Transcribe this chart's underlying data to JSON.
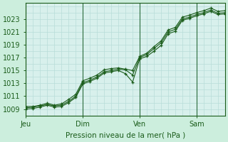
{
  "bg_color": "#cceedd",
  "plot_bg_color": "#d8f0ec",
  "grid_color": "#b8ddd8",
  "line_color": "#1a5c1a",
  "xlabel": "Pression niveau de la mer( hPa )",
  "xtick_labels": [
    "Jeu",
    "Dim",
    "Ven",
    "Sam"
  ],
  "xtick_positions": [
    0,
    48,
    96,
    144
  ],
  "ytick_values": [
    1009,
    1011,
    1013,
    1015,
    1017,
    1019,
    1021,
    1023
  ],
  "ylim": [
    1008.0,
    1025.5
  ],
  "xlim": [
    0,
    168
  ],
  "s1_x": [
    0,
    6,
    12,
    18,
    24,
    30,
    36,
    42,
    48,
    54,
    60,
    66,
    72,
    78,
    84,
    90,
    96,
    102,
    108,
    114,
    120,
    126,
    132,
    138,
    144,
    150,
    156,
    162,
    168
  ],
  "s1_y": [
    1009.2,
    1009.3,
    1009.5,
    1009.7,
    1009.5,
    1009.6,
    1010.2,
    1011.0,
    1013.1,
    1013.5,
    1014.0,
    1014.8,
    1015.0,
    1015.2,
    1015.1,
    1014.3,
    1017.0,
    1017.5,
    1018.4,
    1019.3,
    1021.0,
    1021.4,
    1023.0,
    1023.3,
    1023.7,
    1024.0,
    1024.4,
    1023.9,
    1024.0
  ],
  "s2_x": [
    0,
    6,
    12,
    18,
    24,
    30,
    36,
    42,
    48,
    54,
    60,
    66,
    72,
    78,
    84,
    90,
    96,
    102,
    108,
    114,
    120,
    126,
    132,
    138,
    144,
    150,
    156,
    162,
    168
  ],
  "s2_y": [
    1009.0,
    1009.1,
    1009.3,
    1009.6,
    1009.3,
    1009.4,
    1010.0,
    1010.8,
    1012.9,
    1013.3,
    1013.8,
    1014.6,
    1014.8,
    1015.0,
    1014.5,
    1013.2,
    1016.8,
    1017.2,
    1018.0,
    1018.9,
    1020.7,
    1021.1,
    1022.8,
    1023.1,
    1023.5,
    1023.8,
    1024.2,
    1023.7,
    1023.8
  ],
  "s3_x": [
    0,
    6,
    12,
    18,
    24,
    30,
    36,
    42,
    48,
    54,
    60,
    66,
    72,
    78,
    84,
    90,
    96,
    102,
    108,
    114,
    120,
    126,
    132,
    138,
    144,
    150,
    156,
    162,
    168
  ],
  "s3_y": [
    1009.4,
    1009.4,
    1009.6,
    1009.9,
    1009.6,
    1009.8,
    1010.5,
    1011.3,
    1013.4,
    1013.8,
    1014.3,
    1015.1,
    1015.3,
    1015.4,
    1015.2,
    1015.0,
    1017.2,
    1017.7,
    1018.7,
    1019.6,
    1021.3,
    1021.7,
    1023.3,
    1023.6,
    1024.0,
    1024.3,
    1024.7,
    1024.2,
    1024.3
  ],
  "vline_positions": [
    0,
    48,
    96,
    144
  ],
  "vline_color": "#2a6b3a"
}
